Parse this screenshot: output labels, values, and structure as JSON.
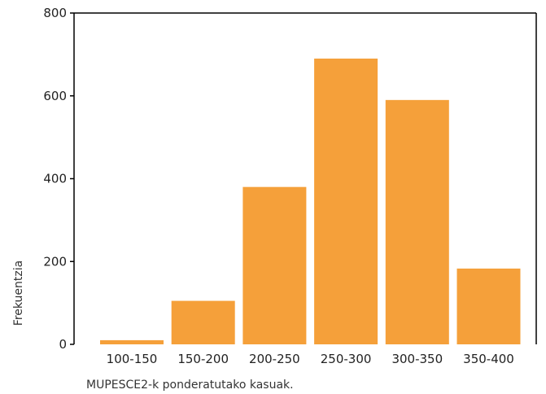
{
  "chart_data": {
    "type": "bar",
    "categories": [
      "100-150",
      "150-200",
      "200-250",
      "250-300",
      "300-350",
      "350-400"
    ],
    "values": [
      10,
      105,
      380,
      690,
      590,
      183
    ],
    "xlabel": "",
    "ylabel": "Frekuentzia",
    "ylim": [
      0,
      800
    ],
    "yticks": [
      0,
      200,
      400,
      600,
      800
    ],
    "grid": false,
    "legend": "none",
    "bar_color": "#F5A03A"
  },
  "caption": "MUPESCE2-k ponderatutako kasuak."
}
